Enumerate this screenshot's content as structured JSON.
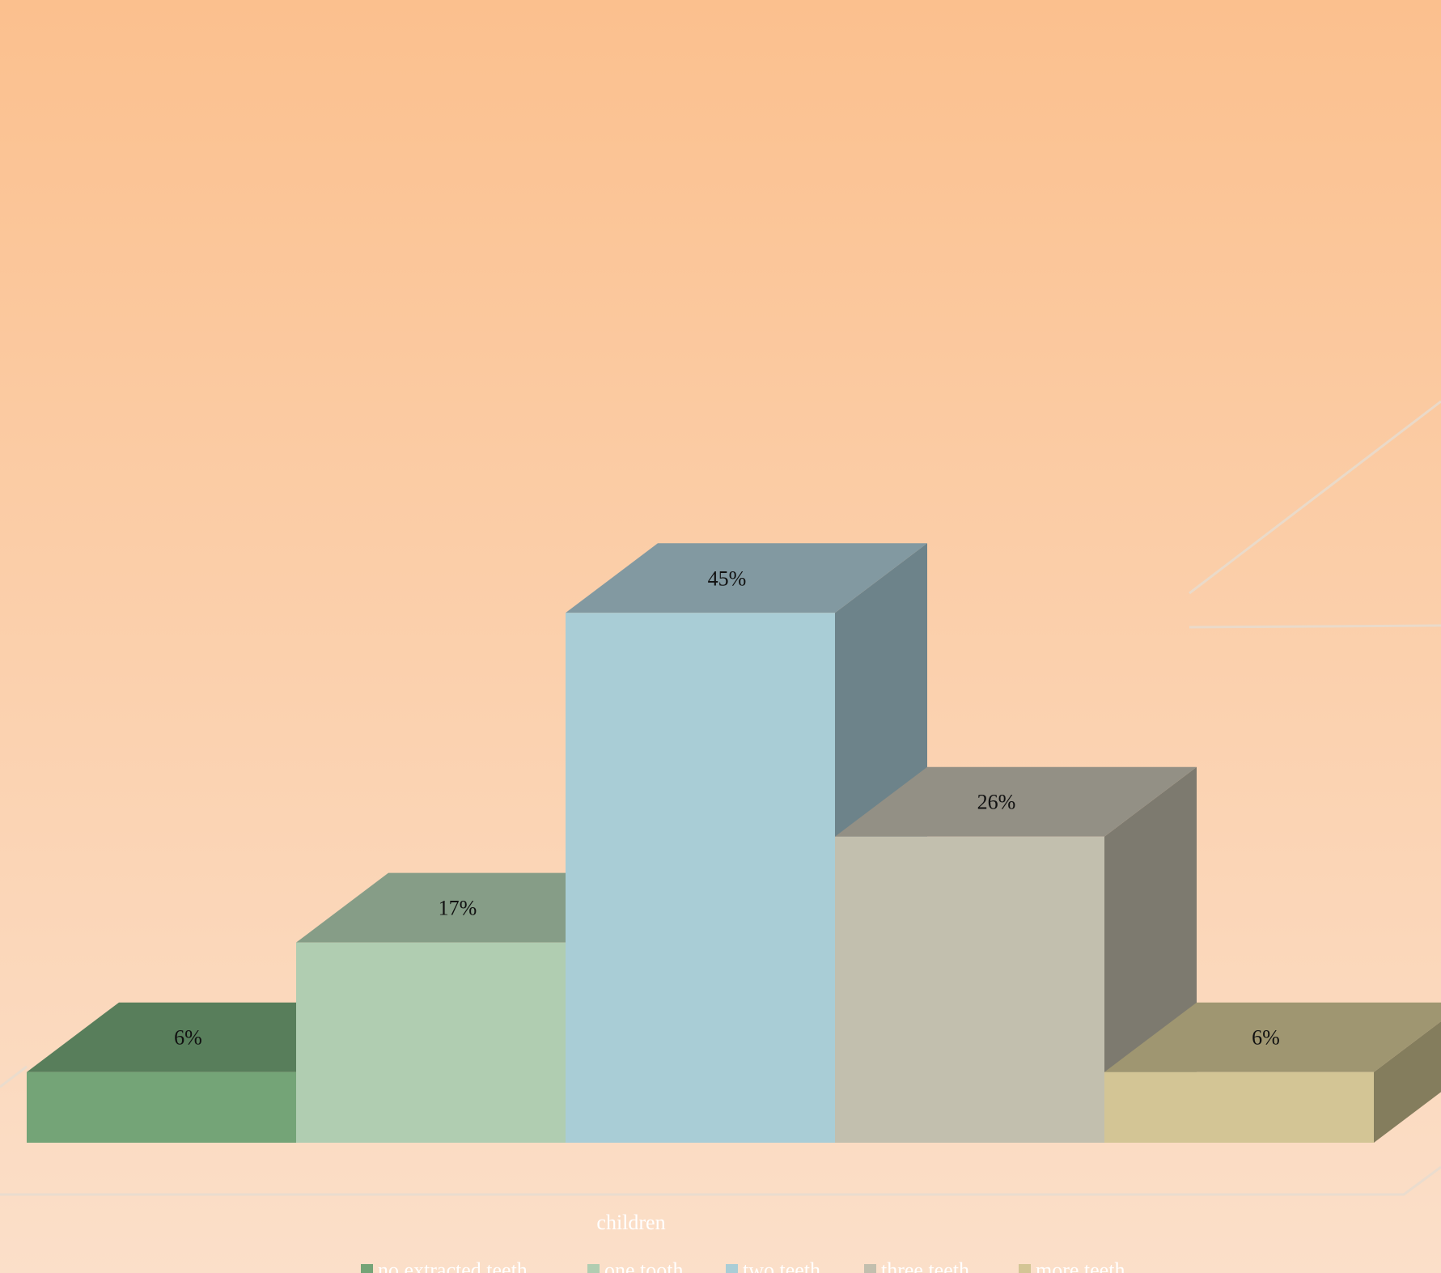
{
  "chart_data": {
    "type": "bar",
    "style": "3d-column",
    "categories": [
      "children"
    ],
    "series": [
      {
        "name": "no extracted teeth",
        "value": 6,
        "label": "6%",
        "color": "#74a477",
        "top_color": "#587e5b",
        "side_color": "#4a6b4d"
      },
      {
        "name": "one tooth",
        "value": 17,
        "label": "17%",
        "color": "#b0cdb1",
        "top_color": "#869d87",
        "side_color": "#6f846f"
      },
      {
        "name": "two teeth",
        "value": 45,
        "label": "45%",
        "color": "#a9cdd6",
        "top_color": "#8299a1",
        "side_color": "#6d838a"
      },
      {
        "name": "three teeth",
        "value": 26,
        "label": "26%",
        "color": "#c2bfae",
        "top_color": "#939085",
        "side_color": "#7d7a6f"
      },
      {
        "name": "more teeth",
        "value": 6,
        "label": "6%",
        "color": "#d3c595",
        "top_color": "#9f9671",
        "side_color": "#847d5d"
      }
    ],
    "xlabel": "children",
    "ylim": [
      0,
      50
    ],
    "grid": true,
    "legend_position": "bottom",
    "background_top": "#fbc08e",
    "background_bottom": "#fbdfc9"
  }
}
